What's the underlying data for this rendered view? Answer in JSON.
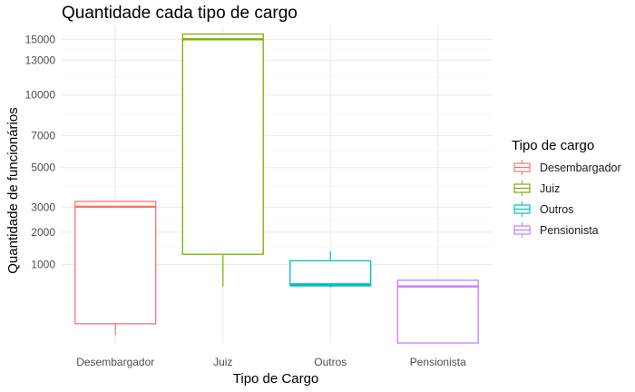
{
  "chart_data": {
    "type": "boxplot",
    "title": "Quantidade cada tipo de cargo",
    "xlabel": "Tipo de Cargo",
    "ylabel": "Quantidade de funcionários",
    "yscale": "sqrt",
    "ylim": [
      0,
      16400
    ],
    "yticks": [
      1000,
      2000,
      3000,
      5000,
      7000,
      10000,
      13000,
      15000
    ],
    "grid": true,
    "legend": {
      "title": "Tipo de cargo",
      "position": "right"
    },
    "categories": [
      "Desembargador",
      "Juiz",
      "Outros",
      "Pensionista"
    ],
    "series": [
      {
        "name": "Desembargador",
        "color": "#F8766D",
        "min": 10,
        "q1": 60,
        "median": 3020,
        "q3": 3260,
        "max": 3260
      },
      {
        "name": "Juiz",
        "color": "#7CAE00",
        "min": 520,
        "q1": 1280,
        "median": 15000,
        "q3": 15520,
        "max": 15520
      },
      {
        "name": "Outros",
        "color": "#00BFC4",
        "min": 500,
        "q1": 530,
        "median": 560,
        "q3": 1100,
        "max": 1370
      },
      {
        "name": "Pensionista",
        "color": "#C77CFF",
        "min": 0,
        "q1": 0,
        "median": 520,
        "q3": 640,
        "max": 640
      }
    ]
  }
}
